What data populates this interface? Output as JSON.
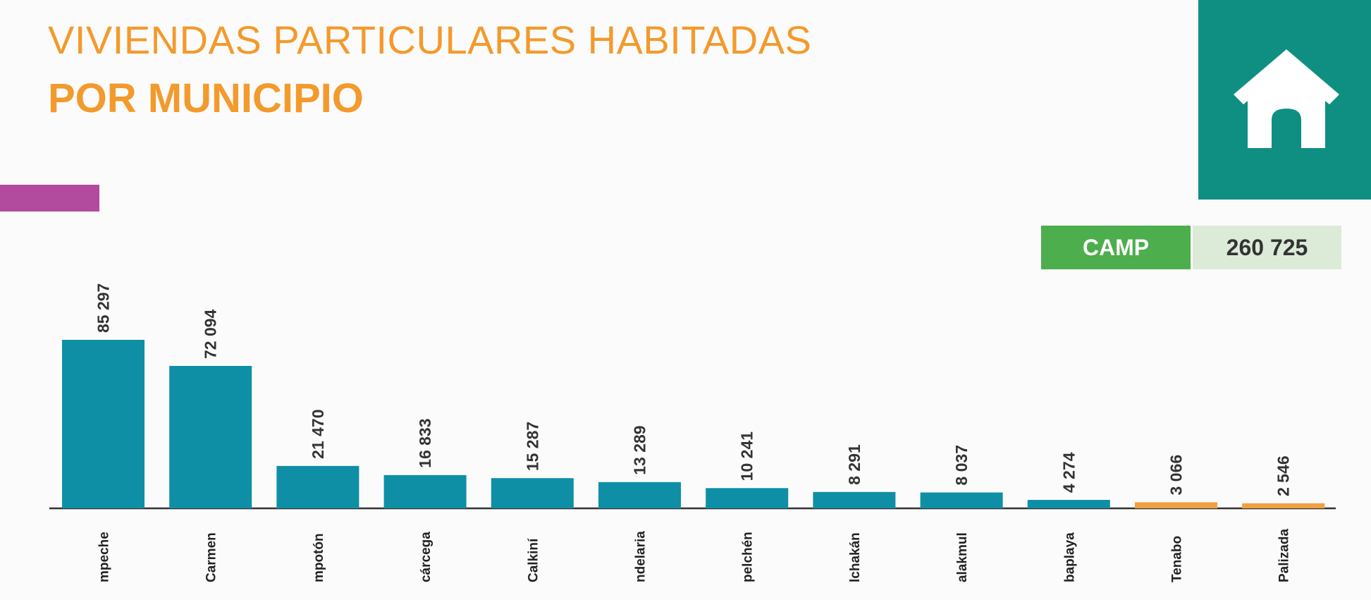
{
  "title": {
    "line1": "VIVIENDAS PARTICULARES HABITADAS",
    "line2": "POR MUNICIPIO"
  },
  "summary": {
    "label": "CAMP",
    "value": "260 725"
  },
  "icons": {
    "house": "house-icon"
  },
  "colors": {
    "title": "#f39a2c",
    "accent_bar": "#b24a9e",
    "house_box": "#0f8f82",
    "summary_label_bg": "#4cae4c",
    "summary_value_bg": "#dcebd8",
    "bar_primary": "#0f8fa6",
    "bar_secondary": "#f0a040"
  },
  "chart_data": {
    "type": "bar",
    "categories": [
      "mpeche",
      "Carmen",
      "mpotón",
      "cárcega",
      "Calkiní",
      "ndelaria",
      "pelchén",
      "lchakán",
      "alakmul",
      "baplaya",
      "Tenabo",
      "Palizada"
    ],
    "values": [
      85297,
      72094,
      21470,
      16833,
      15287,
      13289,
      10241,
      8291,
      8037,
      4274,
      3066,
      2546
    ],
    "value_labels": [
      "85 297",
      "72 094",
      "21 470",
      "16 833",
      "15 287",
      "13 289",
      "10 241",
      "8 291",
      "8 037",
      "4 274",
      "3 066",
      "2 546"
    ],
    "bar_colors": [
      "#0f8fa6",
      "#0f8fa6",
      "#0f8fa6",
      "#0f8fa6",
      "#0f8fa6",
      "#0f8fa6",
      "#0f8fa6",
      "#0f8fa6",
      "#0f8fa6",
      "#0f8fa6",
      "#f0a040",
      "#f0a040"
    ],
    "ylim": [
      0,
      90000
    ],
    "grid": false,
    "legend": "none"
  }
}
